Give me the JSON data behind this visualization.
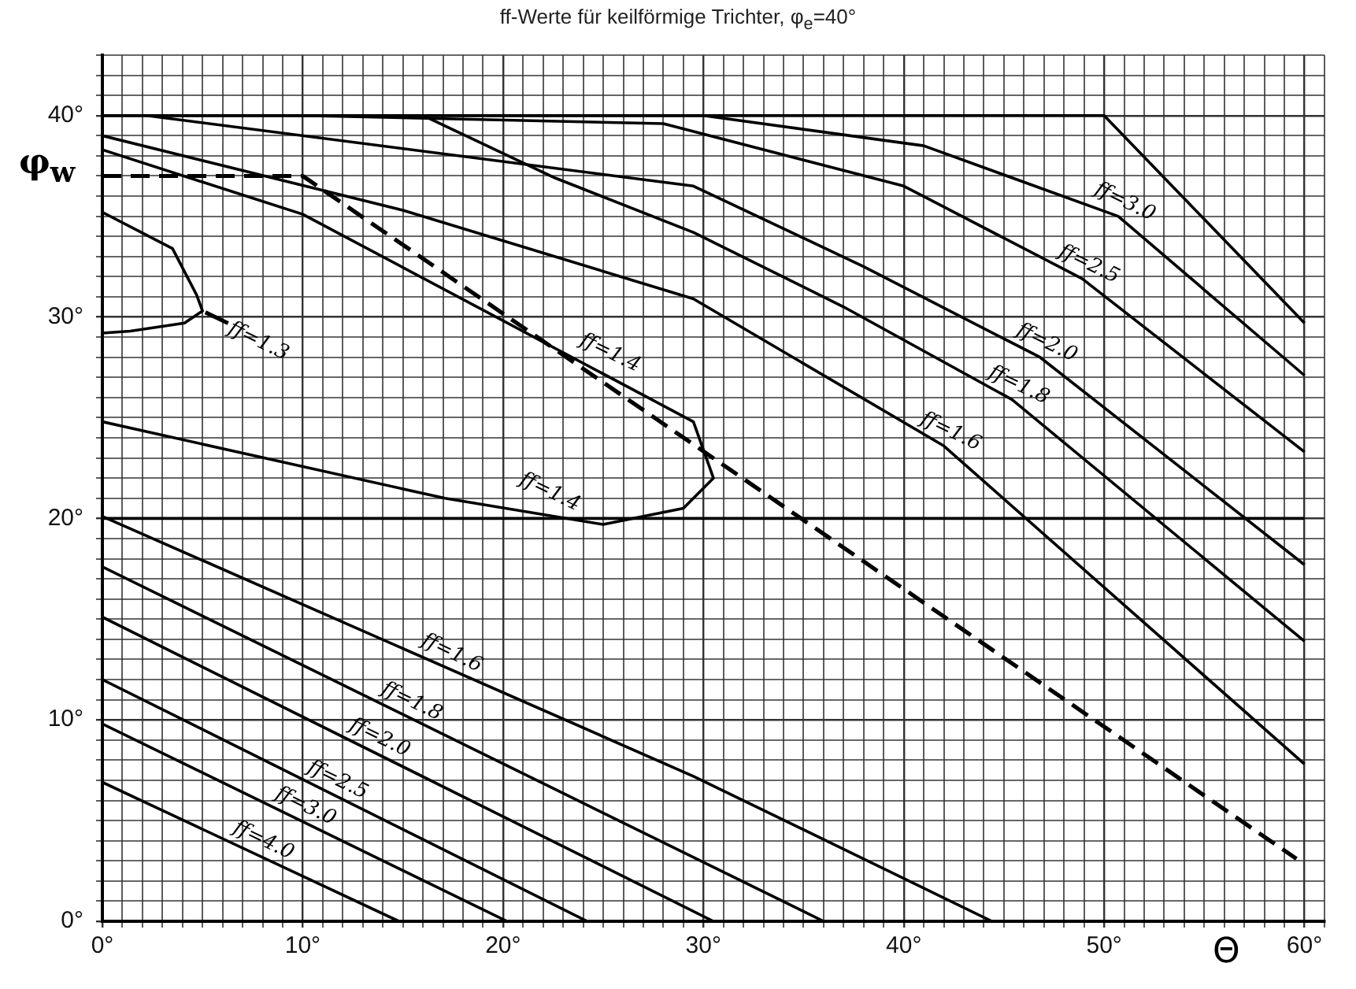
{
  "chart_data": {
    "type": "line",
    "title": "ff-Werte für keilförmige Trichter, φ$_{e}$=40°",
    "xlabel": "Θ",
    "ylabel": "φ$_{w}$",
    "xlim": [
      0,
      61
    ],
    "ylim": [
      0,
      43
    ],
    "xticks": [
      {
        "value": 0,
        "label": "0°"
      },
      {
        "value": 1,
        "label": null
      },
      {
        "value": 2,
        "label": null
      },
      {
        "value": 3,
        "label": null
      },
      {
        "value": 4,
        "label": null
      },
      {
        "value": 5,
        "label": null
      },
      {
        "value": 6,
        "label": null
      },
      {
        "value": 7,
        "label": null
      },
      {
        "value": 8,
        "label": null
      },
      {
        "value": 9,
        "label": null
      },
      {
        "value": 10,
        "label": "10°"
      },
      {
        "value": 11,
        "label": null
      },
      {
        "value": 12,
        "label": null
      },
      {
        "value": 13,
        "label": null
      },
      {
        "value": 14,
        "label": null
      },
      {
        "value": 15,
        "label": null
      },
      {
        "value": 16,
        "label": null
      },
      {
        "value": 17,
        "label": null
      },
      {
        "value": 18,
        "label": null
      },
      {
        "value": 19,
        "label": null
      },
      {
        "value": 20,
        "label": "20°"
      },
      {
        "value": 21,
        "label": null
      },
      {
        "value": 22,
        "label": null
      },
      {
        "value": 23,
        "label": null
      },
      {
        "value": 24,
        "label": null
      },
      {
        "value": 25,
        "label": null
      },
      {
        "value": 26,
        "label": null
      },
      {
        "value": 27,
        "label": null
      },
      {
        "value": 28,
        "label": null
      },
      {
        "value": 29,
        "label": null
      },
      {
        "value": 30,
        "label": "30°"
      },
      {
        "value": 31,
        "label": null
      },
      {
        "value": 32,
        "label": null
      },
      {
        "value": 33,
        "label": null
      },
      {
        "value": 34,
        "label": null
      },
      {
        "value": 35,
        "label": null
      },
      {
        "value": 36,
        "label": null
      },
      {
        "value": 37,
        "label": null
      },
      {
        "value": 38,
        "label": null
      },
      {
        "value": 39,
        "label": null
      },
      {
        "value": 40,
        "label": "40°"
      },
      {
        "value": 41,
        "label": null
      },
      {
        "value": 42,
        "label": null
      },
      {
        "value": 43,
        "label": null
      },
      {
        "value": 44,
        "label": null
      },
      {
        "value": 45,
        "label": null
      },
      {
        "value": 46,
        "label": null
      },
      {
        "value": 47,
        "label": null
      },
      {
        "value": 48,
        "label": null
      },
      {
        "value": 49,
        "label": null
      },
      {
        "value": 50,
        "label": "50°"
      },
      {
        "value": 51,
        "label": null
      },
      {
        "value": 52,
        "label": null
      },
      {
        "value": 53,
        "label": null
      },
      {
        "value": 54,
        "label": null
      },
      {
        "value": 55,
        "label": null
      },
      {
        "value": 56,
        "label": null
      },
      {
        "value": 57,
        "label": null
      },
      {
        "value": 58,
        "label": null
      },
      {
        "value": 59,
        "label": null
      },
      {
        "value": 60,
        "label": "60°"
      },
      {
        "value": 61,
        "label": null
      }
    ],
    "yticks": [
      {
        "value": 0,
        "label": "0°"
      },
      {
        "value": 1,
        "label": null
      },
      {
        "value": 2,
        "label": null
      },
      {
        "value": 3,
        "label": null
      },
      {
        "value": 4,
        "label": null
      },
      {
        "value": 5,
        "label": null
      },
      {
        "value": 6,
        "label": null
      },
      {
        "value": 7,
        "label": null
      },
      {
        "value": 8,
        "label": null
      },
      {
        "value": 9,
        "label": null
      },
      {
        "value": 10,
        "label": "10°"
      },
      {
        "value": 11,
        "label": null
      },
      {
        "value": 12,
        "label": null
      },
      {
        "value": 13,
        "label": null
      },
      {
        "value": 14,
        "label": null
      },
      {
        "value": 15,
        "label": null
      },
      {
        "value": 16,
        "label": null
      },
      {
        "value": 17,
        "label": null
      },
      {
        "value": 18,
        "label": null
      },
      {
        "value": 19,
        "label": null
      },
      {
        "value": 20,
        "label": "20°"
      },
      {
        "value": 21,
        "label": null
      },
      {
        "value": 22,
        "label": null
      },
      {
        "value": 23,
        "label": null
      },
      {
        "value": 24,
        "label": null
      },
      {
        "value": 25,
        "label": null
      },
      {
        "value": 26,
        "label": null
      },
      {
        "value": 27,
        "label": null
      },
      {
        "value": 28,
        "label": null
      },
      {
        "value": 29,
        "label": null
      },
      {
        "value": 30,
        "label": "30°"
      },
      {
        "value": 31,
        "label": null
      },
      {
        "value": 32,
        "label": null
      },
      {
        "value": 33,
        "label": null
      },
      {
        "value": 34,
        "label": null
      },
      {
        "value": 35,
        "label": null
      },
      {
        "value": 36,
        "label": null
      },
      {
        "value": 37,
        "label": null
      },
      {
        "value": 38,
        "label": null
      },
      {
        "value": 39,
        "label": null
      },
      {
        "value": 40,
        "label": "40°"
      },
      {
        "value": 41,
        "label": null
      },
      {
        "value": 42,
        "label": null
      },
      {
        "value": 43,
        "label": null
      }
    ],
    "grid": true,
    "legend": false,
    "marker": "none",
    "line_style": "solid",
    "series": [
      {
        "color": "#000000",
        "x": [
          0,
          50,
          60
        ],
        "values": [
          40,
          40,
          29.7
        ]
      },
      {
        "color": "#000000",
        "x": [
          0,
          60
        ],
        "values": [
          20,
          20
        ]
      },
      {
        "color": "#000000",
        "line_style": "dashed",
        "x": [
          0,
          10,
          59.6
        ],
        "values": [
          37,
          37,
          3.1
        ]
      },
      {
        "color": "#000000",
        "x": [
          0,
          30,
          41,
          50.7,
          60
        ],
        "values": [
          40,
          40,
          38.5,
          35,
          27.1
        ]
      },
      {
        "color": "#000000",
        "x": [
          10,
          28,
          40,
          48.9,
          60
        ],
        "values": [
          40,
          39.6,
          36.5,
          31.9,
          23.3
        ]
      },
      {
        "color": "#000000",
        "x": [
          2.2,
          29.5,
          38,
          46.8,
          60
        ],
        "values": [
          40,
          36.5,
          32.5,
          28,
          17.7
        ]
      },
      {
        "color": "#000000",
        "x": [
          16,
          22.6,
          29.5,
          37,
          45.4,
          60
        ],
        "values": [
          40,
          36.9,
          34.2,
          30.5,
          25.9,
          13.9
        ]
      },
      {
        "color": "#000000",
        "x": [
          0,
          15,
          29.5,
          42,
          60
        ],
        "values": [
          39,
          35.3,
          30.9,
          23.6,
          7.8
        ]
      },
      {
        "color": "#000000",
        "x": [
          0,
          10,
          29.5,
          30.5,
          29,
          25,
          17.1,
          0
        ],
        "values": [
          38.3,
          35.1,
          24.8,
          22,
          20.5,
          19.7,
          21,
          24.8
        ]
      },
      {
        "color": "#000000",
        "x": [
          0,
          3.5,
          4.7,
          5,
          4.1,
          1.4,
          0
        ],
        "values": [
          35.2,
          33.4,
          31.1,
          30.3,
          29.7,
          29.3,
          29.2
        ]
      },
      {
        "color": "#000000",
        "x": [
          0,
          29.5,
          44.4
        ],
        "values": [
          20.1,
          7.2,
          0
        ]
      },
      {
        "color": "#000000",
        "x": [
          0,
          36
        ],
        "values": [
          17.6,
          0
        ]
      },
      {
        "color": "#000000",
        "x": [
          0,
          30.5
        ],
        "values": [
          15.1,
          0
        ]
      },
      {
        "color": "#000000",
        "x": [
          0,
          24.2
        ],
        "values": [
          12,
          0
        ]
      },
      {
        "color": "#000000",
        "x": [
          0,
          20.2
        ],
        "values": [
          9.8,
          0
        ]
      },
      {
        "color": "#000000",
        "x": [
          0,
          14.8
        ],
        "values": [
          6.9,
          0
        ]
      }
    ],
    "annotations": [
      {
        "text": "ff=3.0",
        "x": 50.7,
        "y": 35
      },
      {
        "text": "ff=2.5",
        "x": 48.9,
        "y": 31.9
      },
      {
        "text": "ff=2.0",
        "x": 46.8,
        "y": 28
      },
      {
        "text": "ff=1.8",
        "x": 45.4,
        "y": 25.9
      },
      {
        "text": "ff=1.6",
        "x": 42,
        "y": 23.6
      },
      {
        "text": "ff=1.4",
        "x": 25,
        "y": 27.5
      },
      {
        "text": "ff=1.4",
        "x": 22,
        "y": 20.6
      },
      {
        "text": "ff=1.3",
        "x": 5,
        "y": 30.3
      },
      {
        "text": "ff=1.6",
        "x": 17.1,
        "y": 12.6
      },
      {
        "text": "ff=1.8",
        "x": 15.1,
        "y": 10.2
      },
      {
        "text": "ff=2.0",
        "x": 13.5,
        "y": 8.4
      },
      {
        "text": "ff=2.5",
        "x": 11.4,
        "y": 6.3
      },
      {
        "text": "ff=3.0",
        "x": 9.8,
        "y": 5
      },
      {
        "text": "ff=4.0",
        "x": 7.7,
        "y": 3.3
      }
    ]
  }
}
